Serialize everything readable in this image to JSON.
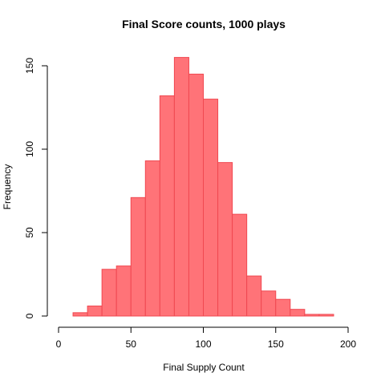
{
  "chart_data": {
    "type": "histogram",
    "title": "Final Score counts, 1000 plays",
    "xlabel": "Final Supply Count",
    "ylabel": "Frequency",
    "bin_width": 10,
    "bins": [
      {
        "x0": 0,
        "x1": 10,
        "count": 0
      },
      {
        "x0": 10,
        "x1": 20,
        "count": 2
      },
      {
        "x0": 20,
        "x1": 30,
        "count": 6
      },
      {
        "x0": 30,
        "x1": 40,
        "count": 28
      },
      {
        "x0": 40,
        "x1": 50,
        "count": 30
      },
      {
        "x0": 50,
        "x1": 60,
        "count": 71
      },
      {
        "x0": 60,
        "x1": 70,
        "count": 93
      },
      {
        "x0": 70,
        "x1": 80,
        "count": 132
      },
      {
        "x0": 80,
        "x1": 90,
        "count": 155
      },
      {
        "x0": 90,
        "x1": 100,
        "count": 145
      },
      {
        "x0": 100,
        "x1": 110,
        "count": 130
      },
      {
        "x0": 110,
        "x1": 120,
        "count": 92
      },
      {
        "x0": 120,
        "x1": 130,
        "count": 61
      },
      {
        "x0": 130,
        "x1": 140,
        "count": 24
      },
      {
        "x0": 140,
        "x1": 150,
        "count": 15
      },
      {
        "x0": 150,
        "x1": 160,
        "count": 10
      },
      {
        "x0": 160,
        "x1": 170,
        "count": 4
      },
      {
        "x0": 170,
        "x1": 180,
        "count": 1
      },
      {
        "x0": 180,
        "x1": 190,
        "count": 1
      },
      {
        "x0": 190,
        "x1": 200,
        "count": 0
      }
    ],
    "xlim": [
      0,
      200
    ],
    "ylim": [
      0,
      155
    ],
    "x_ticks": [
      0,
      50,
      100,
      150,
      200
    ],
    "y_ticks": [
      0,
      50,
      100,
      150
    ],
    "grid": false,
    "legend": "none",
    "bar_fill": "#ff7378",
    "bar_stroke": "#f04850"
  }
}
